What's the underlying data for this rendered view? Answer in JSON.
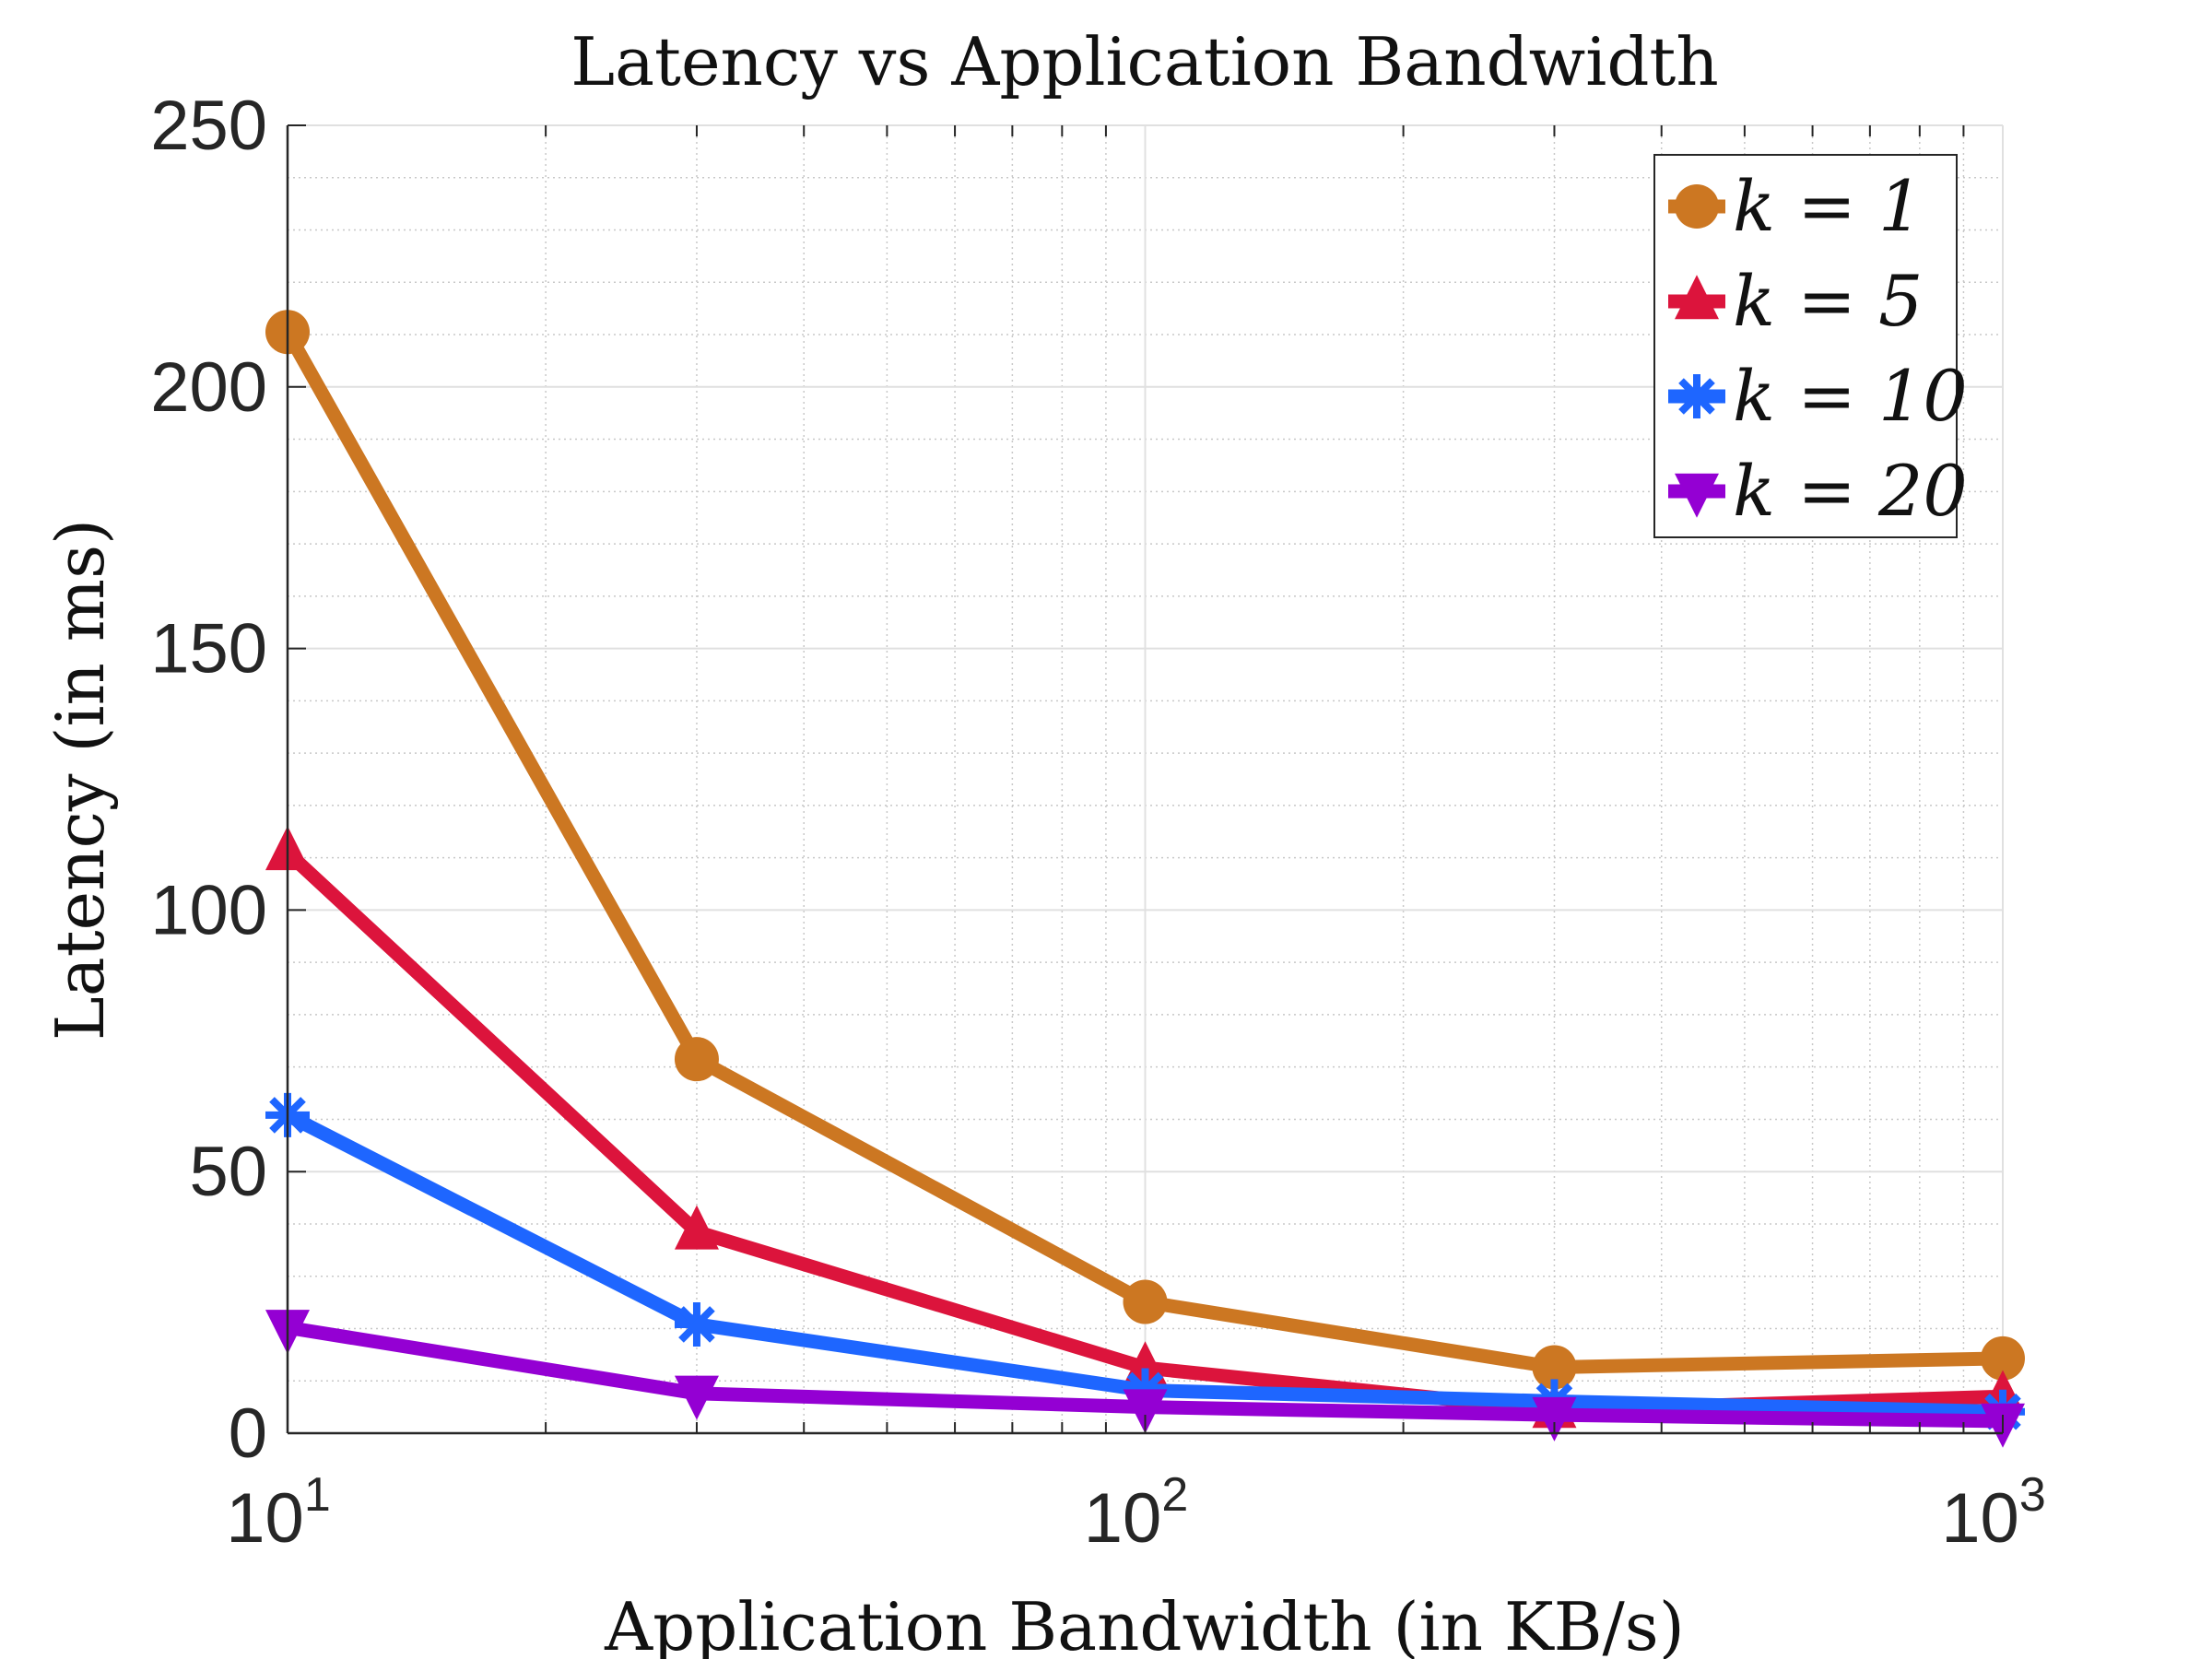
{
  "chart_data": {
    "type": "line",
    "title": "Latency vs Application Bandwidth",
    "xlabel": "Application Bandwidth (in KB/s)",
    "ylabel": "Latency (in ms)",
    "xscale": "log",
    "xlim": [
      10,
      1000
    ],
    "ylim": [
      0,
      250
    ],
    "xticks": [
      {
        "value": 10,
        "base": "10",
        "exp": "1"
      },
      {
        "value": 100,
        "base": "10",
        "exp": "2"
      },
      {
        "value": 1000,
        "base": "10",
        "exp": "3"
      }
    ],
    "yticks": [
      "0",
      "50",
      "100",
      "150",
      "200",
      "250"
    ],
    "grid": true,
    "legend_position": "top-right",
    "x": [
      10,
      30,
      100,
      300,
      1000
    ],
    "series": [
      {
        "name": "k = 1",
        "color": "#CC7722",
        "marker": "circle",
        "values": [
          210.5,
          71.5,
          25.1,
          12.6,
          14.3
        ]
      },
      {
        "name": "k = 5",
        "color": "#DC143C",
        "marker": "triangle-up",
        "values": [
          111,
          38.5,
          12.5,
          4.4,
          7.0
        ]
      },
      {
        "name": "k = 10",
        "color": "#1E66FF",
        "marker": "asterisk",
        "values": [
          60.8,
          20.8,
          8.2,
          6.1,
          4.1
        ]
      },
      {
        "name": "k = 20",
        "color": "#9400D3",
        "marker": "triangle-down",
        "values": [
          20.2,
          7.6,
          5.0,
          3.5,
          2.3
        ]
      }
    ]
  }
}
